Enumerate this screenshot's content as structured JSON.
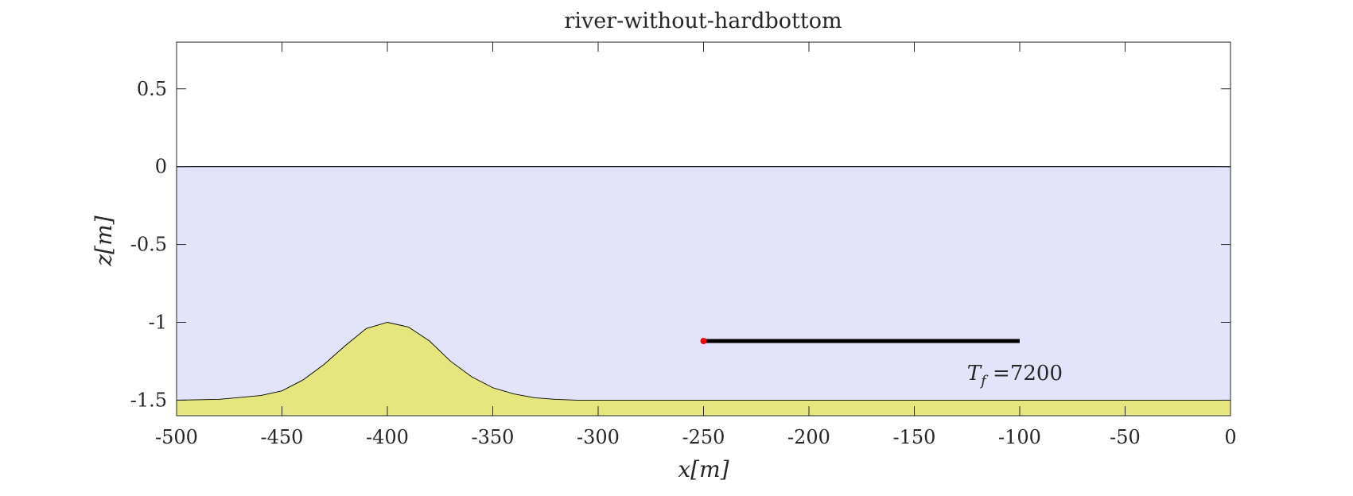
{
  "chart_data": {
    "type": "area",
    "title": "river-without-hardbottom",
    "xlabel": "x[m]",
    "ylabel": "z[m]",
    "xlim": [
      -500,
      0
    ],
    "ylim": [
      -1.6,
      0.8
    ],
    "xticks": [
      -500,
      -450,
      -400,
      -350,
      -300,
      -250,
      -200,
      -150,
      -100,
      -50,
      0
    ],
    "yticks": [
      -1.5,
      -1,
      -0.5,
      0,
      0.5
    ],
    "xtick_labels": [
      "-500",
      "-450",
      "-400",
      "-350",
      "-300",
      "-250",
      "-200",
      "-150",
      "-100",
      "-50",
      "0"
    ],
    "ytick_labels": [
      "-1.5",
      "-1",
      "-0.5",
      "0",
      "0.5"
    ],
    "grid": false,
    "water": {
      "surface_z": 0,
      "color": "#e3e3fb"
    },
    "bed": {
      "color": "#e6e67e",
      "x": [
        -500,
        -480,
        -460,
        -450,
        -440,
        -430,
        -420,
        -410,
        -400,
        -390,
        -380,
        -370,
        -360,
        -350,
        -340,
        -330,
        -320,
        -310,
        -300,
        -250,
        -200,
        -150,
        -100,
        -50,
        0
      ],
      "z": [
        -1.5,
        -1.495,
        -1.47,
        -1.44,
        -1.37,
        -1.27,
        -1.15,
        -1.04,
        -1.0,
        -1.03,
        -1.12,
        -1.25,
        -1.35,
        -1.42,
        -1.46,
        -1.485,
        -1.495,
        -1.5,
        -1.5,
        -1.5,
        -1.5,
        -1.5,
        -1.5,
        -1.5,
        -1.5
      ]
    },
    "segment": {
      "x": [
        -250,
        -100
      ],
      "z": [
        -1.12,
        -1.12
      ],
      "color": "#000000",
      "start_marker_color": "#ff0000"
    },
    "annotation": {
      "text": "T_f =7200",
      "x": -125,
      "z": -1.37,
      "base": "T",
      "sub": "f",
      "rest": " =7200"
    }
  }
}
